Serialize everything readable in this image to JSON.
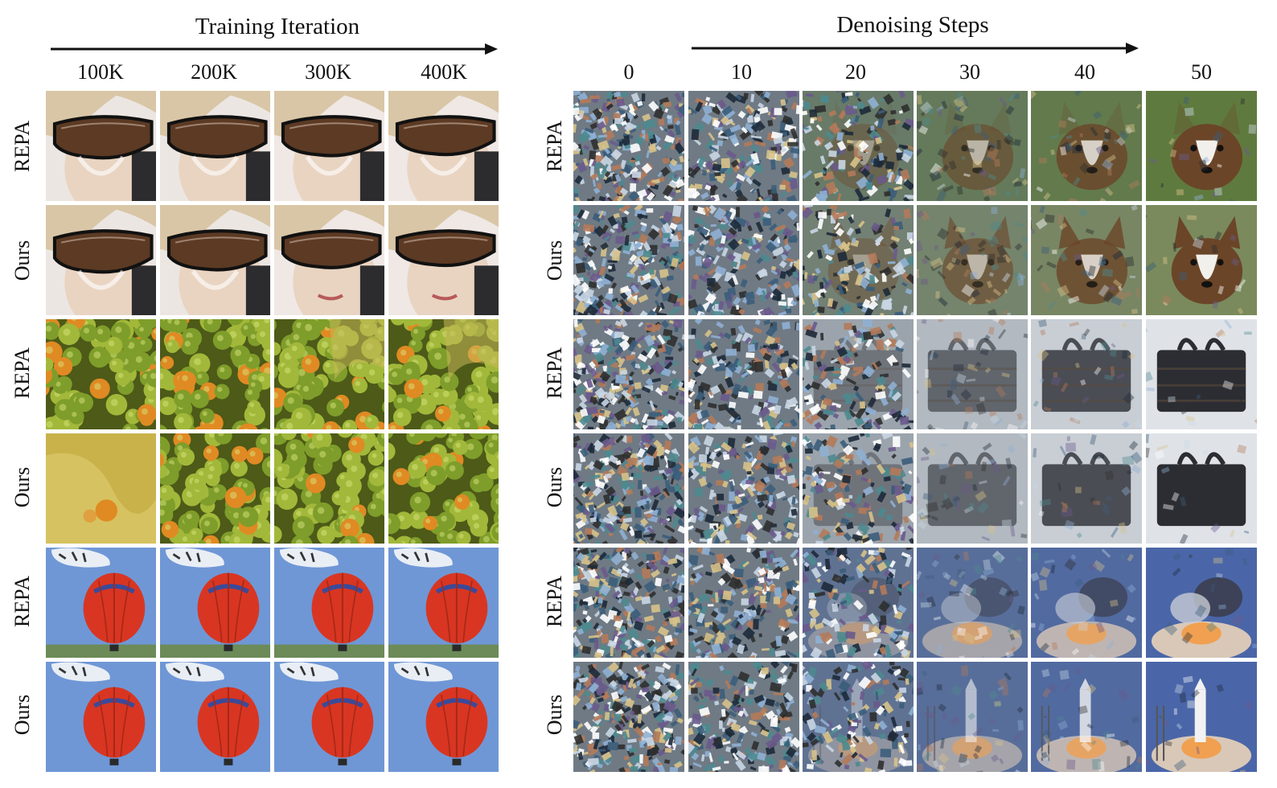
{
  "left_panel": {
    "title": "Training Iteration",
    "columns": [
      "100K",
      "200K",
      "300K",
      "400K"
    ],
    "rows": [
      {
        "label": "REPA",
        "subject": "woman-with-sunglasses"
      },
      {
        "label": "Ours",
        "subject": "woman-with-sunglasses"
      },
      {
        "label": "REPA",
        "subject": "green-fruit-pile"
      },
      {
        "label": "Ours",
        "subject": "green-fruit-pile"
      },
      {
        "label": "REPA",
        "subject": "hot-air-balloon"
      },
      {
        "label": "Ours",
        "subject": "hot-air-balloon"
      }
    ]
  },
  "right_panel": {
    "title": "Denoising Steps",
    "columns": [
      "0",
      "10",
      "20",
      "30",
      "40",
      "50"
    ],
    "rows": [
      {
        "label": "REPA",
        "subject": "dog"
      },
      {
        "label": "Ours",
        "subject": "dog"
      },
      {
        "label": "REPA",
        "subject": "handbag"
      },
      {
        "label": "Ours",
        "subject": "handbag"
      },
      {
        "label": "REPA",
        "subject": "space-shuttle-launch"
      },
      {
        "label": "Ours",
        "subject": "space-shuttle-launch"
      }
    ]
  },
  "colors": {
    "text": "#111111",
    "noise": "#6f7a84",
    "skin": "#e9d4c2",
    "hair": "#d9c6a6",
    "lens": "#5c3a24",
    "fruit_green": "#7f9d2a",
    "fruit_orange": "#e08a23",
    "sky": "#6f97d6",
    "balloon_red": "#d83622",
    "dog_brown": "#6b4528",
    "bag_dark": "#2c2d33",
    "fire": "#f0a050"
  }
}
